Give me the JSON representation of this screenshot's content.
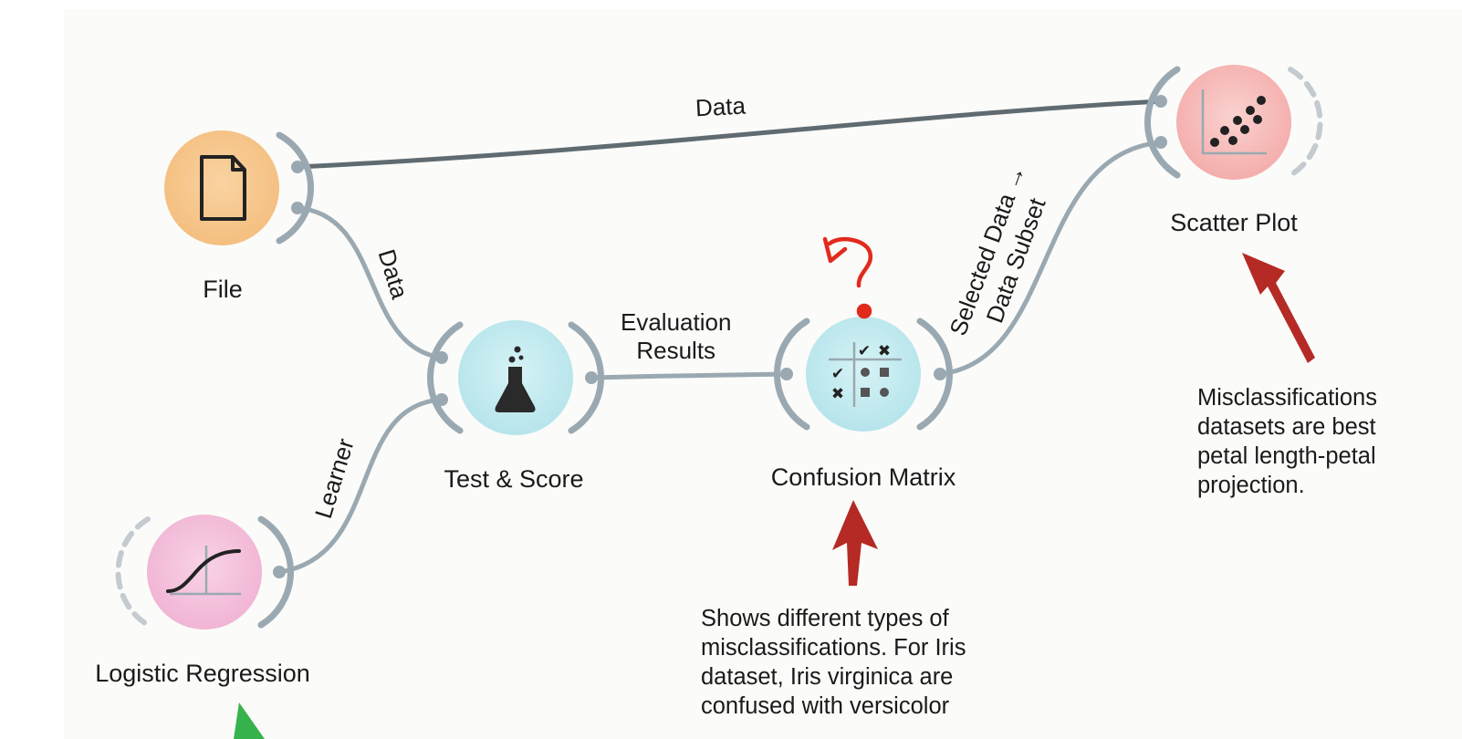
{
  "nodes": {
    "file": {
      "label": "File",
      "icon": "file-icon",
      "color": "#f8c88d"
    },
    "test_score": {
      "label": "Test & Score",
      "icon": "flask-icon",
      "color": "#bfe9ef"
    },
    "confusion_matrix": {
      "label": "Confusion Matrix",
      "icon": "confusion-matrix-icon",
      "color": "#bfe9ef"
    },
    "scatter_plot": {
      "label": "Scatter Plot",
      "icon": "scatter-plot-icon",
      "color": "#f7b9b9"
    },
    "logistic_regression": {
      "label": "Logistic Regression",
      "icon": "sigmoid-curve-icon",
      "color": "#f3b8d6"
    }
  },
  "links": {
    "file_to_scatter": "Data",
    "file_to_test": "Data",
    "learner_to_test": "Learner",
    "test_to_confusion": "Evaluation\nResults",
    "confusion_to_scatter_line1": "Selected Data →",
    "confusion_to_scatter_line2": "Data Subset"
  },
  "notes": {
    "confusion_matrix": "Shows different types of\nmisclassifications. For Iris\ndataset, Iris virginica are\nconfused with versicolor",
    "scatter_plot": "Misclassifications\ndatasets are best\npetal length-petal\nprojection."
  },
  "annotations": {
    "question_mark": "?",
    "arrow_color": "#b52a25",
    "question_color": "#e22a1c",
    "link_color": "#9aa9b1"
  }
}
